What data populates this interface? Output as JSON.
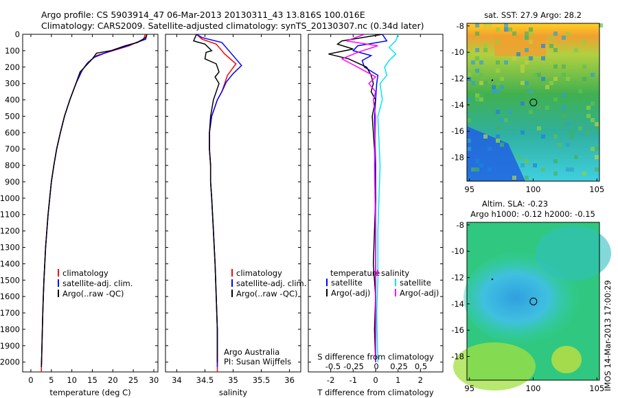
{
  "header": {
    "line1": "Argo profile: CS 5903914_47 06-Mar-2013 20130311_43 13.816S 100.016E",
    "line2": "Climatology: CARS2009. Satellite-adjusted climatology: synTS_20130307.nc (0.34d later)"
  },
  "colors": {
    "climatology": "#ff0000",
    "satellite": "#0000ff",
    "argo": "#000000",
    "sal_satellite": "#00e5ee",
    "sal_argo": "#ff00ff"
  },
  "chart_data": [
    {
      "type": "line",
      "id": "temperature",
      "xlabel": "temperature (deg C)",
      "xlim": [
        -2,
        31
      ],
      "xticks": [
        0,
        5,
        10,
        15,
        20,
        25,
        30
      ],
      "ylim": [
        0,
        2060
      ],
      "yticks": [
        0,
        100,
        200,
        300,
        400,
        500,
        600,
        700,
        800,
        900,
        1000,
        1100,
        1200,
        1300,
        1400,
        1500,
        1600,
        1700,
        1800,
        1900,
        2000
      ],
      "legend": [
        "climatology",
        "satellite-adj. clim.",
        "Argo(..raw -QC)"
      ],
      "series": [
        {
          "name": "climatology",
          "color": "#ff0000",
          "points": [
            [
              27.9,
              0
            ],
            [
              27.5,
              30
            ],
            [
              24,
              70
            ],
            [
              20,
              100
            ],
            [
              16,
              130
            ],
            [
              14,
              170
            ],
            [
              12.5,
              220
            ],
            [
              11,
              300
            ],
            [
              9.5,
              400
            ],
            [
              8.2,
              500
            ],
            [
              7.2,
              600
            ],
            [
              6.3,
              700
            ],
            [
              5.6,
              800
            ],
            [
              5,
              900
            ],
            [
              4.6,
              1000
            ],
            [
              4.2,
              1100
            ],
            [
              3.9,
              1200
            ],
            [
              3.6,
              1300
            ],
            [
              3.4,
              1400
            ],
            [
              3.2,
              1500
            ],
            [
              3.05,
              1600
            ],
            [
              2.9,
              1700
            ],
            [
              2.8,
              1800
            ],
            [
              2.7,
              1900
            ],
            [
              2.6,
              2000
            ],
            [
              2.55,
              2060
            ]
          ]
        },
        {
          "name": "satellite-adj. clim.",
          "color": "#0000ff",
          "points": [
            [
              28.3,
              0
            ],
            [
              28,
              30
            ],
            [
              23,
              75
            ],
            [
              19,
              105
            ],
            [
              15.5,
              140
            ],
            [
              13.8,
              175
            ],
            [
              12.5,
              220
            ],
            [
              11,
              300
            ],
            [
              9.5,
              400
            ],
            [
              8.2,
              500
            ],
            [
              7.2,
              600
            ],
            [
              6.3,
              700
            ],
            [
              5.6,
              800
            ],
            [
              5,
              900
            ],
            [
              4.6,
              1000
            ],
            [
              4.2,
              1100
            ],
            [
              3.9,
              1200
            ],
            [
              3.6,
              1300
            ],
            [
              3.4,
              1400
            ],
            [
              3.2,
              1500
            ],
            [
              3.05,
              1600
            ],
            [
              2.9,
              1700
            ],
            [
              2.8,
              1800
            ],
            [
              2.7,
              1900
            ],
            [
              2.6,
              2000
            ],
            [
              2.55,
              2030
            ]
          ]
        },
        {
          "name": "Argo(..raw -QC)",
          "color": "#000000",
          "points": [
            [
              28.3,
              0
            ],
            [
              28,
              20
            ],
            [
              26,
              50
            ],
            [
              23,
              70
            ],
            [
              19.5,
              100
            ],
            [
              16,
              115
            ],
            [
              15,
              150
            ],
            [
              13.5,
              190
            ],
            [
              12,
              230
            ],
            [
              11,
              300
            ],
            [
              9.5,
              400
            ],
            [
              8.2,
              500
            ],
            [
              7.2,
              600
            ],
            [
              6.3,
              700
            ],
            [
              5.6,
              800
            ],
            [
              5,
              900
            ],
            [
              4.6,
              1000
            ],
            [
              4.2,
              1100
            ],
            [
              3.9,
              1200
            ],
            [
              3.6,
              1300
            ],
            [
              3.4,
              1400
            ],
            [
              3.2,
              1500
            ],
            [
              3.05,
              1600
            ],
            [
              2.9,
              1700
            ],
            [
              2.8,
              1800
            ],
            [
              2.7,
              1900
            ],
            [
              2.6,
              2000
            ],
            [
              2.55,
              2030
            ]
          ]
        }
      ]
    },
    {
      "type": "line",
      "id": "salinity",
      "xlabel": "salinity",
      "xlim": [
        33.8,
        36.2
      ],
      "xticks": [
        34,
        34.5,
        35,
        35.5,
        36
      ],
      "ylim": [
        0,
        2060
      ],
      "legend": [
        "climatology",
        "satellite-adj. clim.",
        "Argo(..raw -QC)"
      ],
      "annotation": [
        "Argo Australia",
        "PI: Susan Wijffels"
      ],
      "series": [
        {
          "name": "climatology",
          "color": "#ff0000",
          "points": [
            [
              34.35,
              0
            ],
            [
              34.45,
              30
            ],
            [
              34.7,
              60
            ],
            [
              34.85,
              120
            ],
            [
              35.05,
              180
            ],
            [
              34.9,
              250
            ],
            [
              34.85,
              300
            ],
            [
              34.8,
              350
            ],
            [
              34.72,
              400
            ],
            [
              34.62,
              500
            ],
            [
              34.58,
              600
            ],
            [
              34.58,
              700
            ],
            [
              34.6,
              800
            ],
            [
              34.6,
              900
            ],
            [
              34.62,
              1000
            ],
            [
              34.65,
              1200
            ],
            [
              34.68,
              1400
            ],
            [
              34.7,
              1600
            ],
            [
              34.72,
              1800
            ],
            [
              34.72,
              2000
            ],
            [
              34.72,
              2060
            ]
          ]
        },
        {
          "name": "satellite-adj. clim.",
          "color": "#0000ff",
          "points": [
            [
              34.35,
              0
            ],
            [
              34.45,
              20
            ],
            [
              34.8,
              50
            ],
            [
              34.95,
              110
            ],
            [
              35.15,
              190
            ],
            [
              35.0,
              240
            ],
            [
              34.88,
              290
            ],
            [
              34.8,
              350
            ],
            [
              34.72,
              400
            ],
            [
              34.62,
              500
            ],
            [
              34.58,
              600
            ],
            [
              34.58,
              700
            ],
            [
              34.6,
              800
            ],
            [
              34.6,
              900
            ],
            [
              34.62,
              1000
            ],
            [
              34.65,
              1200
            ],
            [
              34.68,
              1400
            ],
            [
              34.7,
              1600
            ],
            [
              34.72,
              1800
            ],
            [
              34.72,
              2000
            ],
            [
              34.72,
              2030
            ]
          ]
        },
        {
          "name": "Argo(..raw -QC)",
          "color": "#000000",
          "points": [
            [
              34.35,
              0
            ],
            [
              34.3,
              40
            ],
            [
              34.5,
              60
            ],
            [
              34.62,
              100
            ],
            [
              34.52,
              110
            ],
            [
              34.5,
              150
            ],
            [
              34.7,
              180
            ],
            [
              34.75,
              230
            ],
            [
              34.68,
              260
            ],
            [
              34.75,
              300
            ],
            [
              34.7,
              350
            ],
            [
              34.65,
              400
            ],
            [
              34.6,
              500
            ],
            [
              34.58,
              600
            ],
            [
              34.58,
              700
            ],
            [
              34.6,
              800
            ],
            [
              34.6,
              900
            ],
            [
              34.62,
              1000
            ],
            [
              34.65,
              1200
            ],
            [
              34.68,
              1400
            ],
            [
              34.7,
              1600
            ],
            [
              34.72,
              1800
            ],
            [
              34.72,
              2000
            ]
          ]
        }
      ]
    },
    {
      "type": "line",
      "id": "differences",
      "xlabel": "T difference from climatology",
      "xlabel_top": "S difference from climatology",
      "xlim": [
        -3,
        3
      ],
      "xticks": [
        -2,
        -1,
        0,
        1,
        2
      ],
      "xticks_top": [
        "-0.5",
        "-0.25",
        "0",
        "0.25",
        "0.5"
      ],
      "ylim": [
        0,
        2060
      ],
      "legend_left_title": "temperature",
      "legend_right_title": "salinity",
      "legend": [
        "satellite",
        "Argo(-adj)",
        "satellite",
        "Argo(-adj)"
      ],
      "series": [
        {
          "name": "satellite",
          "color": "#0000ff",
          "points": [
            [
              0.3,
              0
            ],
            [
              0.5,
              40
            ],
            [
              -0.8,
              70
            ],
            [
              -1,
              100
            ],
            [
              -0.2,
              130
            ],
            [
              -0.6,
              160
            ],
            [
              -0.5,
              200
            ],
            [
              0.1,
              250
            ],
            [
              0.05,
              300
            ],
            [
              0,
              400
            ],
            [
              -0.05,
              500
            ],
            [
              0,
              800
            ],
            [
              0,
              1200
            ],
            [
              0,
              1600
            ],
            [
              0,
              2000
            ]
          ]
        },
        {
          "name": "Argo(-adj)",
          "color": "#000000",
          "points": [
            [
              0.3,
              0
            ],
            [
              -1.5,
              40
            ],
            [
              -1.7,
              60
            ],
            [
              -1,
              90
            ],
            [
              -2.1,
              120
            ],
            [
              -1.2,
              150
            ],
            [
              -0.4,
              200
            ],
            [
              -0.2,
              250
            ],
            [
              -0.1,
              300
            ],
            [
              -0.2,
              350
            ],
            [
              0,
              400
            ],
            [
              -0.15,
              500
            ],
            [
              -0.05,
              700
            ],
            [
              0,
              1000
            ],
            [
              -0.1,
              1400
            ],
            [
              0,
              1600
            ],
            [
              -0.05,
              1800
            ],
            [
              0,
              2000
            ]
          ]
        },
        {
          "name": "S satellite",
          "color": "#00e5ee",
          "points": [
            [
              1,
              0
            ],
            [
              0.9,
              40
            ],
            [
              0.6,
              80
            ],
            [
              0.9,
              120
            ],
            [
              0.6,
              160
            ],
            [
              0.4,
              200
            ],
            [
              0.5,
              250
            ],
            [
              0.2,
              300
            ],
            [
              0.3,
              400
            ],
            [
              0.1,
              500
            ],
            [
              0.2,
              800
            ],
            [
              0.1,
              1200
            ],
            [
              0.1,
              1500
            ],
            [
              0.05,
              1700
            ],
            [
              0.1,
              2000
            ]
          ]
        },
        {
          "name": "S Argo(-adj)",
          "color": "#ff00ff",
          "points": [
            [
              -0.5,
              0
            ],
            [
              -1.3,
              40
            ],
            [
              0.1,
              70
            ],
            [
              -0.8,
              110
            ],
            [
              -1.5,
              150
            ],
            [
              -0.8,
              200
            ],
            [
              0,
              260
            ],
            [
              -0.3,
              300
            ],
            [
              0,
              350
            ],
            [
              -0.1,
              400
            ],
            [
              0,
              500
            ],
            [
              -0.05,
              800
            ],
            [
              0,
              1200
            ],
            [
              0,
              2000
            ]
          ]
        }
      ]
    },
    {
      "type": "heatmap",
      "id": "sst_map",
      "title": "sat. SST: 27.9 Argo: 28.2",
      "xlim": [
        94.8,
        105.2
      ],
      "ylim": [
        -19.8,
        -7.8
      ],
      "xticks": [
        95,
        100,
        105
      ],
      "yticks": [
        -8,
        -10,
        -12,
        -14,
        -16,
        -18
      ],
      "marker": [
        100.016,
        -13.816
      ]
    },
    {
      "type": "heatmap",
      "id": "sla_map",
      "title": "Altim. SLA: -0.23",
      "subtitle": "Argo h1000: -0.12 h2000: -0.15",
      "xlim": [
        94.8,
        105.2
      ],
      "ylim": [
        -19.8,
        -7.8
      ],
      "xticks": [
        95,
        100,
        105
      ],
      "yticks": [
        -8,
        -10,
        -12,
        -14,
        -16,
        -18
      ],
      "marker": [
        100.016,
        -13.816
      ]
    }
  ],
  "stamp": "IMOS 14-Mar-2013 17:00:29"
}
